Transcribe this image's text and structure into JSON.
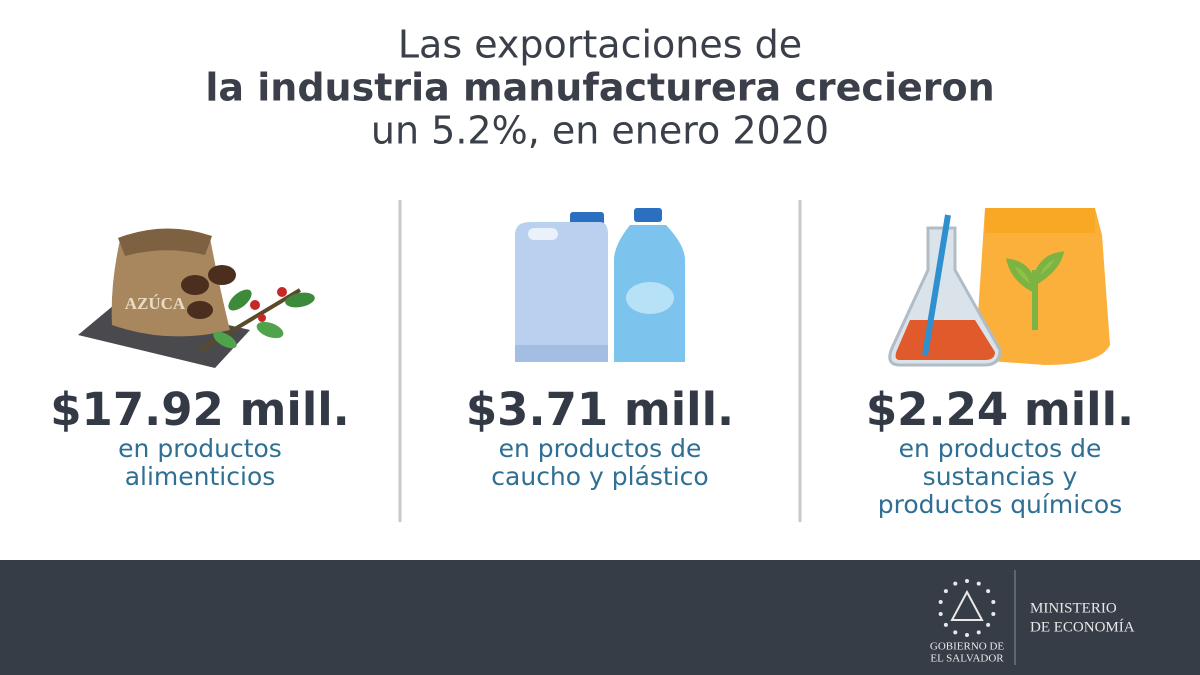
{
  "header": {
    "lines": [
      "Las exportaciones de",
      "la industria manufacturera crecieron",
      "un 5.2%, en enero 2020"
    ]
  },
  "items": [
    {
      "amount": "$17.92 mill.",
      "description": [
        "en productos",
        "alimenticios"
      ],
      "illustration_label": "AZÚCA"
    },
    {
      "amount": "$3.71 mill.",
      "description": [
        "en productos de",
        "caucho y plástico"
      ]
    },
    {
      "amount": "$2.24 mill.",
      "description": [
        "en productos de",
        "sustancias y",
        "productos químicos"
      ]
    }
  ],
  "footer": {
    "government": [
      "GOBIERNO DE",
      "EL SALVADOR"
    ],
    "ministry": [
      "MINISTERIO",
      "DE ECONOMÍA"
    ]
  }
}
